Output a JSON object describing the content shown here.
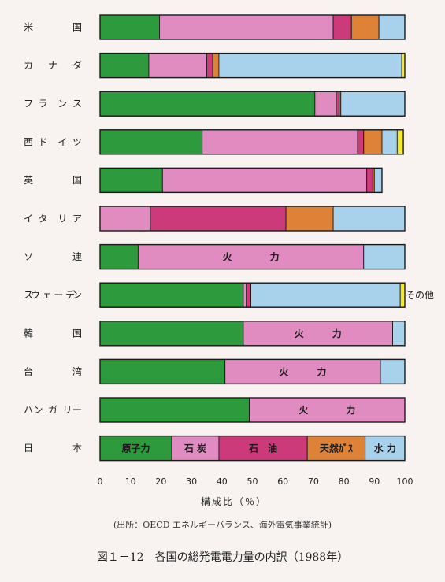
{
  "chart_data": {
    "type": "bar",
    "stacked": true,
    "orientation": "horizontal",
    "categories": [
      "米　国",
      "カナダ",
      "フランス",
      "西ドイツ",
      "英　国",
      "イタリア",
      "ソ　連",
      "スウェーデン",
      "韓　国",
      "台　湾",
      "ハンガリー",
      "日　本"
    ],
    "series": [
      {
        "name": "原子力",
        "color": "#2d9a3e",
        "values": [
          19.5,
          16,
          70.5,
          33.5,
          20.5,
          0,
          12.5,
          47,
          47,
          41,
          49,
          23.5
        ]
      },
      {
        "name": "石炭",
        "color": "#e08cc0",
        "values": [
          57,
          19,
          7,
          51,
          67,
          16.5,
          0,
          1,
          0,
          0,
          0,
          15.5
        ]
      },
      {
        "name": "石油",
        "color": "#cc3a79",
        "values": [
          6,
          2,
          1,
          2,
          2,
          44.5,
          0,
          1.5,
          0,
          0,
          0,
          29
        ]
      },
      {
        "name": "火力",
        "color": "#e08cc0",
        "values": [
          0,
          0,
          0,
          0,
          0,
          0,
          74,
          0,
          49,
          51,
          51,
          0
        ]
      },
      {
        "name": "天然ガス",
        "color": "#dd8236",
        "values": [
          9,
          2,
          0.5,
          6,
          0.5,
          15.5,
          0,
          0,
          0,
          0,
          0,
          19
        ]
      },
      {
        "name": "水力",
        "color": "#a8d2ec",
        "values": [
          8.5,
          60,
          21,
          5,
          2.5,
          23.5,
          13.5,
          49,
          4,
          8,
          0,
          13
        ]
      },
      {
        "name": "その他",
        "color": "#f0ea3a",
        "values": [
          0,
          1,
          0,
          2,
          0,
          0,
          0,
          1.5,
          0,
          0,
          0,
          0
        ]
      }
    ],
    "inline_labels": [
      {
        "category_index": 6,
        "series": "火力",
        "text": "火　　　　力"
      },
      {
        "category_index": 8,
        "series": "火力",
        "text": "火　　　力"
      },
      {
        "category_index": 9,
        "series": "火力",
        "text": "火　　　力"
      },
      {
        "category_index": 10,
        "series": "火力",
        "text": "火　　　　力"
      },
      {
        "category_index": 11,
        "series": "原子力",
        "text": "原子力"
      },
      {
        "category_index": 11,
        "series": "石炭",
        "text": "石 炭"
      },
      {
        "category_index": 11,
        "series": "石油",
        "text": "石　油"
      },
      {
        "category_index": 11,
        "series": "天然ガス",
        "text": "天然ｶﾞｽ"
      },
      {
        "category_index": 11,
        "series": "水力",
        "text": "水 力"
      }
    ],
    "other_label": {
      "category_index": 7,
      "text": "その他"
    },
    "xticks": [
      0,
      10,
      20,
      30,
      40,
      50,
      60,
      70,
      80,
      90,
      100
    ],
    "xlim": [
      0,
      100
    ],
    "xlabel": "構成比（％）",
    "source": "(出所：OECD エネルギーバランス、海外電気事業統計)",
    "title": "図１－12　各国の総発電電力量の内訳（1988年）"
  },
  "colors": {
    "background": "#f8f2f1",
    "outline": "#1a1a1a"
  }
}
